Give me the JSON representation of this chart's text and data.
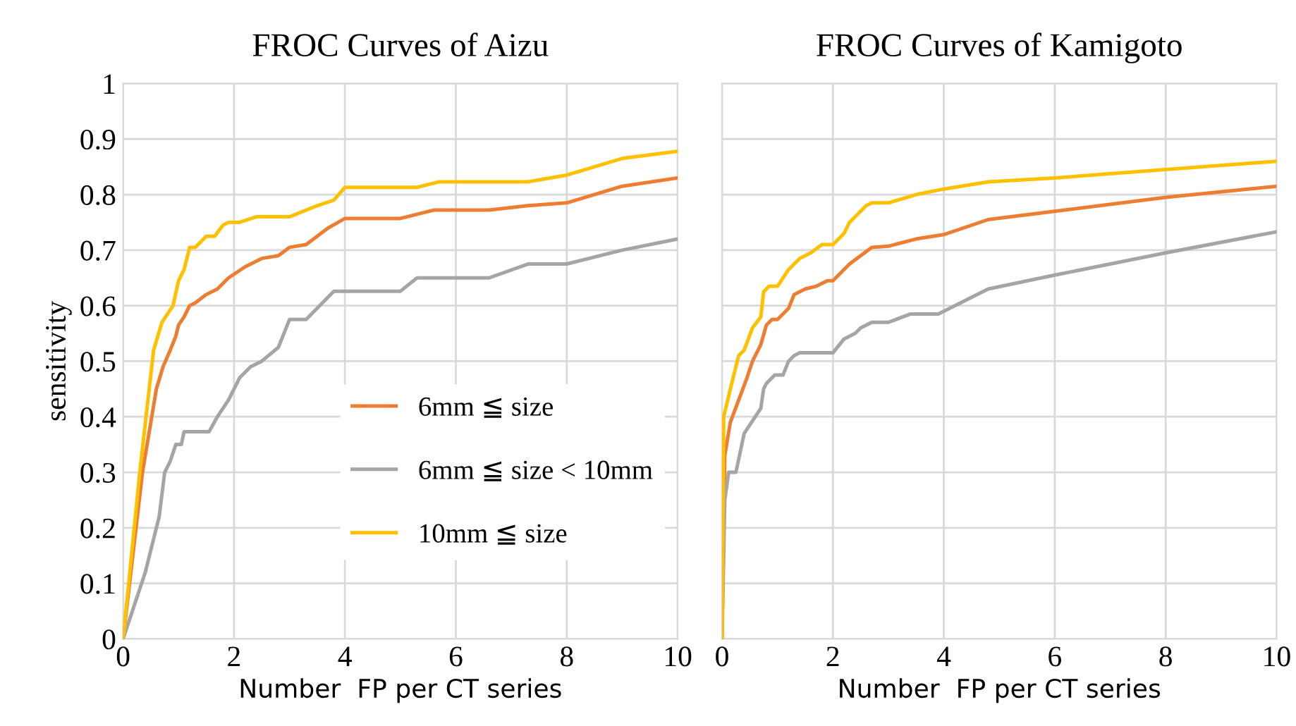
{
  "chart_data": [
    {
      "type": "line",
      "title": "FROC Curves of Aizu",
      "xlabel": "Number  FP per CT series",
      "ylabel": "sensitivity",
      "xlim": [
        0,
        10
      ],
      "xticks": [
        0,
        2,
        4,
        6,
        8,
        10
      ],
      "ylim": [
        0,
        1
      ],
      "yticks": [
        0,
        0.1,
        0.2,
        0.3,
        0.4,
        0.5,
        0.6,
        0.7,
        0.8,
        0.9,
        1
      ],
      "grid": true,
      "legend": "right",
      "marker": "none",
      "line_style": "solid",
      "series": [
        {
          "name": "6mm ≦ size",
          "color": "#ed7d31",
          "x": [
            0,
            0.35,
            0.6,
            0.72,
            0.85,
            0.95,
            1.0,
            1.1,
            1.2,
            1.3,
            1.5,
            1.7,
            1.9,
            2.2,
            2.5,
            2.8,
            3.0,
            3.3,
            3.7,
            4.0,
            5.0,
            5.6,
            6.6,
            7.3,
            8,
            9,
            10
          ],
          "values": [
            0,
            0.3,
            0.45,
            0.49,
            0.52,
            0.545,
            0.565,
            0.58,
            0.6,
            0.605,
            0.62,
            0.63,
            0.65,
            0.67,
            0.685,
            0.69,
            0.705,
            0.71,
            0.74,
            0.757,
            0.757,
            0.772,
            0.772,
            0.78,
            0.785,
            0.815,
            0.83
          ]
        },
        {
          "name": "6mm ≦ size < 10mm",
          "color": "#a5a5a5",
          "x": [
            0,
            0.4,
            0.6,
            0.65,
            0.75,
            0.85,
            0.95,
            1.05,
            1.1,
            1.55,
            1.7,
            1.9,
            2.1,
            2.3,
            2.5,
            2.8,
            3.0,
            3.3,
            3.8,
            5.0,
            5.3,
            6.6,
            7.3,
            8,
            9,
            10
          ],
          "values": [
            0,
            0.12,
            0.2,
            0.22,
            0.3,
            0.32,
            0.35,
            0.35,
            0.373,
            0.373,
            0.4,
            0.43,
            0.47,
            0.49,
            0.5,
            0.525,
            0.575,
            0.575,
            0.626,
            0.626,
            0.65,
            0.65,
            0.675,
            0.675,
            0.7,
            0.72
          ]
        },
        {
          "name": "10mm ≦ size",
          "color": "#ffc000",
          "x": [
            0,
            0.3,
            0.55,
            0.7,
            0.9,
            1.0,
            1.1,
            1.2,
            1.3,
            1.5,
            1.65,
            1.8,
            1.9,
            2.1,
            2.4,
            3.0,
            3.5,
            3.8,
            4.0,
            5.3,
            5.7,
            7.3,
            8,
            9,
            10
          ],
          "values": [
            0,
            0.3,
            0.52,
            0.57,
            0.6,
            0.645,
            0.665,
            0.705,
            0.705,
            0.725,
            0.725,
            0.745,
            0.75,
            0.75,
            0.76,
            0.76,
            0.78,
            0.79,
            0.813,
            0.813,
            0.823,
            0.823,
            0.835,
            0.865,
            0.878
          ]
        }
      ]
    },
    {
      "type": "line",
      "title": "FROC Curves of Kamigoto",
      "xlabel": "Number  FP per CT series",
      "xlim": [
        0,
        10
      ],
      "xticks": [
        0,
        2,
        4,
        6,
        8,
        10
      ],
      "ylim": [
        0,
        1
      ],
      "yticks": [
        0,
        0.1,
        0.2,
        0.3,
        0.4,
        0.5,
        0.6,
        0.7,
        0.8,
        0.9,
        1
      ],
      "grid": true,
      "tick_labels": "x",
      "marker": "none",
      "line_style": "solid",
      "series": [
        {
          "color": "#ed7d31",
          "x": [
            0,
            0.05,
            0.15,
            0.3,
            0.45,
            0.55,
            0.7,
            0.8,
            0.9,
            1.0,
            1.2,
            1.3,
            1.5,
            1.7,
            1.9,
            2.0,
            2.3,
            2.7,
            3.0,
            3.5,
            4.0,
            4.8,
            6,
            8,
            10
          ],
          "values": [
            0,
            0.33,
            0.39,
            0.43,
            0.47,
            0.5,
            0.53,
            0.565,
            0.575,
            0.575,
            0.595,
            0.62,
            0.63,
            0.635,
            0.645,
            0.645,
            0.675,
            0.705,
            0.707,
            0.72,
            0.728,
            0.755,
            0.77,
            0.795,
            0.815
          ]
        },
        {
          "color": "#a5a5a5",
          "x": [
            0,
            0.05,
            0.12,
            0.25,
            0.4,
            0.6,
            0.7,
            0.75,
            0.8,
            0.95,
            1.1,
            1.2,
            1.3,
            1.4,
            2.0,
            2.2,
            2.4,
            2.5,
            2.7,
            3.0,
            3.4,
            3.9,
            4.8,
            6,
            8,
            10
          ],
          "values": [
            0,
            0.25,
            0.3,
            0.3,
            0.37,
            0.4,
            0.415,
            0.45,
            0.46,
            0.475,
            0.475,
            0.5,
            0.51,
            0.515,
            0.515,
            0.54,
            0.55,
            0.56,
            0.57,
            0.57,
            0.585,
            0.585,
            0.63,
            0.655,
            0.695,
            0.733
          ]
        },
        {
          "color": "#ffc000",
          "x": [
            0,
            0.03,
            0.15,
            0.3,
            0.4,
            0.55,
            0.7,
            0.75,
            0.85,
            1.0,
            1.2,
            1.4,
            1.6,
            1.8,
            2.0,
            2.2,
            2.3,
            2.6,
            2.7,
            3.0,
            3.5,
            4.0,
            4.8,
            6,
            8,
            10
          ],
          "values": [
            0,
            0.4,
            0.45,
            0.51,
            0.52,
            0.56,
            0.58,
            0.625,
            0.635,
            0.635,
            0.665,
            0.685,
            0.695,
            0.71,
            0.71,
            0.73,
            0.75,
            0.78,
            0.785,
            0.785,
            0.8,
            0.81,
            0.823,
            0.83,
            0.845,
            0.86
          ]
        }
      ]
    }
  ]
}
